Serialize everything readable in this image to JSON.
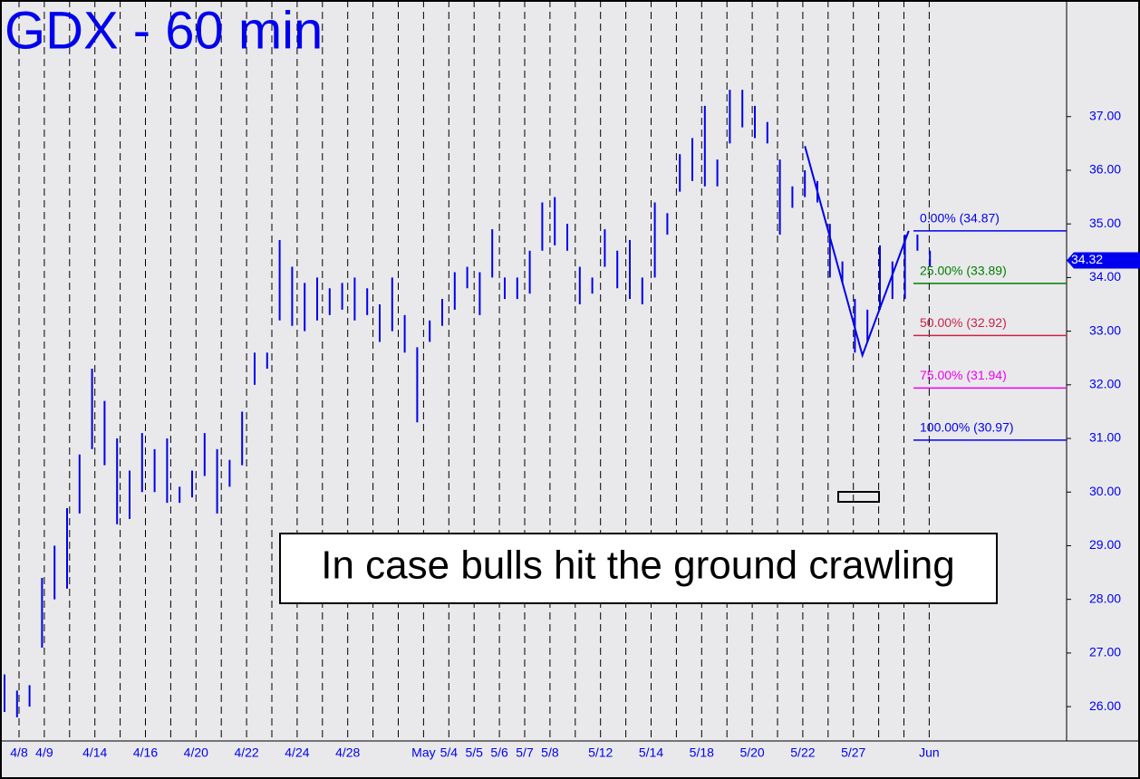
{
  "chart_data": {
    "type": "ohlc",
    "title": "GDX - 60 min",
    "annotation": "In case bulls hit the ground crawling",
    "color": "#0000ee",
    "ylim": [
      25.36,
      39.09
    ],
    "yticks": [
      {
        "value": 26,
        "label": "26.00"
      },
      {
        "value": 27,
        "label": "27.00"
      },
      {
        "value": 28,
        "label": "28.00"
      },
      {
        "value": 29,
        "label": "29.00"
      },
      {
        "value": 30,
        "label": "30.00"
      },
      {
        "value": 31,
        "label": "31.00"
      },
      {
        "value": 32,
        "label": "32.00"
      },
      {
        "value": 33,
        "label": "33.00"
      },
      {
        "value": 34,
        "label": "34.00"
      },
      {
        "value": 35,
        "label": "35.00"
      },
      {
        "value": 36,
        "label": "36.00"
      },
      {
        "value": 37,
        "label": "37.00"
      }
    ],
    "categories": [
      "4/8",
      "4/9",
      null,
      "4/14",
      null,
      "4/16",
      null,
      "4/20",
      null,
      "4/22",
      null,
      "4/24",
      null,
      "4/28",
      null,
      null,
      "May",
      "5/4",
      "5/5",
      "5/6",
      "5/7",
      "5/8",
      null,
      "5/12",
      null,
      "5/14",
      null,
      "5/18",
      null,
      "5/20",
      null,
      "5/22",
      null,
      "5/27",
      null,
      null,
      "Jun"
    ],
    "series": [
      {
        "name": "GDX",
        "high": [
          26.6,
          26.3,
          26.4,
          28.4,
          29.0,
          29.7,
          30.7,
          32.3,
          31.7,
          31.0,
          30.4,
          31.1,
          30.8,
          31.0,
          30.1,
          30.4,
          31.1,
          30.8,
          30.6,
          31.5,
          32.6,
          32.6,
          34.7,
          34.2,
          33.9,
          34.0,
          33.8,
          33.9,
          34.0,
          33.8,
          33.5,
          34.0,
          33.3,
          32.7,
          33.2,
          33.6,
          34.1,
          34.2,
          34.1,
          34.9,
          34.0,
          34.0,
          34.5,
          35.4,
          35.5,
          35.0,
          34.2,
          34.0,
          34.9,
          34.5,
          34.7,
          34.0,
          35.4,
          35.2,
          36.3,
          36.6,
          37.2,
          36.2,
          37.5,
          37.5,
          37.2,
          36.9,
          36.2,
          35.7,
          36.0,
          35.8,
          35.0,
          34.3,
          33.6,
          33.4,
          34.6,
          34.3,
          34.8,
          34.8,
          34.5
        ],
        "low": [
          25.9,
          25.8,
          26.0,
          27.1,
          28.0,
          28.2,
          29.6,
          30.8,
          30.5,
          29.4,
          29.5,
          30.0,
          30.0,
          29.8,
          29.8,
          29.9,
          30.3,
          29.6,
          30.1,
          30.5,
          32.0,
          32.3,
          33.2,
          33.1,
          33.0,
          33.2,
          33.3,
          33.4,
          33.2,
          33.3,
          32.8,
          33.0,
          32.6,
          31.3,
          32.8,
          33.1,
          33.4,
          33.8,
          33.3,
          34.0,
          33.6,
          33.6,
          33.7,
          34.5,
          34.6,
          34.5,
          33.5,
          33.7,
          34.2,
          33.8,
          33.6,
          33.5,
          34.0,
          34.8,
          35.6,
          35.8,
          35.7,
          35.7,
          36.5,
          36.8,
          36.6,
          36.5,
          34.8,
          35.3,
          35.5,
          35.4,
          34.0,
          33.9,
          32.6,
          32.8,
          33.4,
          33.6,
          33.6,
          34.5,
          34.2
        ]
      }
    ],
    "last_price": 34.32,
    "pattern": {
      "x": [
        64,
        68.6,
        72.3
      ],
      "values": [
        36.45,
        32.55,
        34.87
      ]
    },
    "fib_levels": [
      {
        "label": "0.00% (34.87)",
        "value": 34.87,
        "color": "#0000ee"
      },
      {
        "label": "25.00% (33.89)",
        "value": 33.89,
        "color": "#008000"
      },
      {
        "label": "50.00% (32.92)",
        "value": 32.92,
        "color": "#cc2244"
      },
      {
        "label": "75.00% (31.94)",
        "value": 31.94,
        "color": "#ee00ee"
      },
      {
        "label": "100.00% (30.97)",
        "value": 30.97,
        "color": "#0000ee"
      }
    ]
  }
}
